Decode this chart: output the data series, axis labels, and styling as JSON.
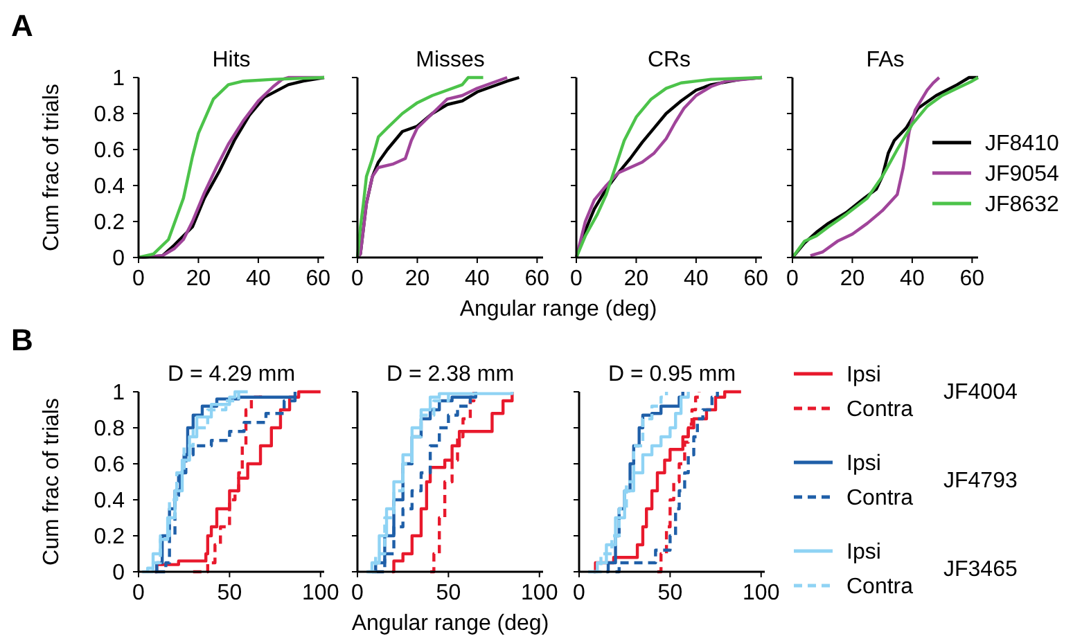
{
  "chart_data": [
    {
      "type": "line",
      "title": "Hits",
      "ylabel": "Cum frac of trials",
      "annotations": [
        "A"
      ],
      "xlim": [
        0,
        62
      ],
      "xticks": [
        0,
        20,
        40,
        60
      ],
      "ylim": [
        0,
        1
      ],
      "yticks": [
        {
          "value": 0,
          "label": "0"
        },
        {
          "value": 0.2,
          "label": "0.2"
        },
        {
          "value": 0.4,
          "label": "0.4"
        },
        {
          "value": 0.6,
          "label": "0.6"
        },
        {
          "value": 0.8,
          "label": "0.8"
        },
        {
          "value": 1,
          "label": "1"
        }
      ],
      "legend": false,
      "series": [
        {
          "color": "#000000",
          "x": [
            0,
            8,
            12,
            18,
            22,
            27,
            32,
            37,
            42,
            50,
            55,
            62
          ],
          "values": [
            0,
            0.01,
            0.07,
            0.17,
            0.33,
            0.48,
            0.65,
            0.79,
            0.89,
            0.96,
            0.98,
            1
          ]
        },
        {
          "color": "#a0449a",
          "x": [
            0,
            8,
            12,
            15,
            18,
            22,
            26,
            30,
            35,
            40,
            45,
            48,
            50,
            62
          ],
          "values": [
            0,
            0.01,
            0.05,
            0.1,
            0.2,
            0.36,
            0.5,
            0.63,
            0.76,
            0.87,
            0.95,
            0.99,
            1,
            1
          ]
        },
        {
          "color": "#4cc34a",
          "x": [
            0,
            5,
            10,
            15,
            18,
            20,
            25,
            30,
            35,
            45,
            62
          ],
          "values": [
            0,
            0.02,
            0.1,
            0.33,
            0.56,
            0.69,
            0.88,
            0.96,
            0.98,
            0.99,
            1
          ]
        }
      ]
    },
    {
      "type": "line",
      "title": "Misses",
      "xlabel": "Angular range (deg)",
      "tick_labels": "x",
      "xlim": [
        0,
        62
      ],
      "xticks": [
        0,
        20,
        40,
        60
      ],
      "ylim": [
        0,
        1
      ],
      "yticks": [
        {
          "value": 0,
          "label": null
        },
        {
          "value": 0.2,
          "label": null
        },
        {
          "value": 0.4,
          "label": null
        },
        {
          "value": 0.6,
          "label": null
        },
        {
          "value": 0.8,
          "label": null
        },
        {
          "value": 1,
          "label": null
        }
      ],
      "legend": false,
      "series": [
        {
          "color": "#000000",
          "x": [
            0,
            1,
            3,
            5,
            7,
            10,
            15,
            20,
            25,
            30,
            35,
            40,
            45,
            50,
            54
          ],
          "values": [
            0,
            0.02,
            0.3,
            0.45,
            0.53,
            0.6,
            0.7,
            0.73,
            0.8,
            0.85,
            0.87,
            0.92,
            0.95,
            0.98,
            1
          ]
        },
        {
          "color": "#a0449a",
          "x": [
            0,
            1,
            3,
            5,
            7,
            12,
            16,
            18,
            20,
            25,
            30,
            35,
            40,
            45,
            50
          ],
          "values": [
            0,
            0.02,
            0.3,
            0.45,
            0.5,
            0.52,
            0.55,
            0.65,
            0.72,
            0.8,
            0.88,
            0.9,
            0.94,
            0.97,
            1
          ]
        },
        {
          "color": "#4cc34a",
          "x": [
            0,
            1,
            2,
            3,
            5,
            7,
            10,
            15,
            20,
            25,
            30,
            35,
            37,
            42
          ],
          "values": [
            0,
            0.17,
            0.3,
            0.45,
            0.55,
            0.67,
            0.72,
            0.8,
            0.86,
            0.9,
            0.93,
            0.96,
            1,
            1
          ]
        }
      ]
    },
    {
      "type": "line",
      "title": "CRs",
      "tick_labels": "x",
      "xlim": [
        0,
        62
      ],
      "xticks": [
        0,
        20,
        40,
        60
      ],
      "ylim": [
        0,
        1
      ],
      "yticks": [
        {
          "value": 0,
          "label": null
        },
        {
          "value": 0.2,
          "label": null
        },
        {
          "value": 0.4,
          "label": null
        },
        {
          "value": 0.6,
          "label": null
        },
        {
          "value": 0.8,
          "label": null
        },
        {
          "value": 1,
          "label": null
        }
      ],
      "legend": false,
      "series": [
        {
          "color": "#000000",
          "x": [
            0,
            3,
            6,
            10,
            14,
            18,
            22,
            26,
            30,
            35,
            40,
            45,
            55,
            62
          ],
          "values": [
            0,
            0.15,
            0.27,
            0.38,
            0.47,
            0.55,
            0.64,
            0.72,
            0.8,
            0.87,
            0.93,
            0.96,
            0.99,
            1
          ]
        },
        {
          "color": "#a0449a",
          "x": [
            0,
            3,
            6,
            10,
            14,
            18,
            22,
            26,
            30,
            33,
            36,
            40,
            45,
            50,
            62
          ],
          "values": [
            0,
            0.2,
            0.32,
            0.4,
            0.47,
            0.5,
            0.53,
            0.58,
            0.66,
            0.75,
            0.83,
            0.9,
            0.95,
            0.98,
            1
          ]
        },
        {
          "color": "#4cc34a",
          "x": [
            0,
            3,
            7,
            10,
            13,
            16,
            20,
            25,
            30,
            35,
            45,
            62
          ],
          "values": [
            0,
            0.12,
            0.24,
            0.35,
            0.5,
            0.65,
            0.78,
            0.88,
            0.94,
            0.97,
            0.99,
            1
          ]
        }
      ]
    },
    {
      "type": "line",
      "title": "FAs",
      "tick_labels": "x",
      "xlim": [
        0,
        62
      ],
      "xticks": [
        0,
        20,
        40,
        60
      ],
      "ylim": [
        0,
        1
      ],
      "yticks": [
        {
          "value": 0,
          "label": null
        },
        {
          "value": 0.2,
          "label": null
        },
        {
          "value": 0.4,
          "label": null
        },
        {
          "value": 0.6,
          "label": null
        },
        {
          "value": 0.8,
          "label": null
        },
        {
          "value": 1,
          "label": null
        }
      ],
      "legend": "right",
      "series": [
        {
          "name": "JF8410",
          "color": "#000000",
          "x": [
            0,
            4,
            8,
            12,
            18,
            24,
            28,
            30,
            32,
            34,
            38,
            42,
            48,
            55,
            59,
            62
          ],
          "values": [
            0,
            0.08,
            0.14,
            0.19,
            0.25,
            0.33,
            0.38,
            0.45,
            0.58,
            0.65,
            0.72,
            0.83,
            0.9,
            0.96,
            1,
            1
          ]
        },
        {
          "name": "JF9054",
          "color": "#a0449a",
          "x": [
            6,
            10,
            15,
            20,
            25,
            30,
            35,
            37,
            39,
            41,
            45,
            47,
            49
          ],
          "values": [
            0.01,
            0.03,
            0.09,
            0.13,
            0.19,
            0.26,
            0.35,
            0.5,
            0.7,
            0.82,
            0.93,
            0.97,
            1
          ]
        },
        {
          "name": "JF8632",
          "color": "#4cc34a",
          "x": [
            0,
            4,
            8,
            12,
            18,
            25,
            30,
            35,
            40,
            45,
            50,
            55,
            60,
            62
          ],
          "values": [
            0,
            0.09,
            0.12,
            0.17,
            0.24,
            0.33,
            0.45,
            0.6,
            0.74,
            0.84,
            0.9,
            0.94,
            0.98,
            1
          ]
        }
      ]
    },
    {
      "type": "step",
      "title": "D = 4.29 mm",
      "ylabel": "Cum frac of trials",
      "annotations": [
        "B"
      ],
      "xlim": [
        0,
        102
      ],
      "xticks": [
        0,
        50,
        100
      ],
      "ylim": [
        0,
        1
      ],
      "yticks": [
        {
          "value": 0,
          "label": "0"
        },
        {
          "value": 0.2,
          "label": "0.2"
        },
        {
          "value": 0.4,
          "label": "0.4"
        },
        {
          "value": 0.6,
          "label": "0.6"
        },
        {
          "value": 0.8,
          "label": "0.8"
        },
        {
          "value": 1,
          "label": "1"
        }
      ],
      "legend": false,
      "series": [
        {
          "color": "#e8192c",
          "line_style": "solid",
          "x": [
            9,
            10,
            20,
            22,
            35,
            37,
            38,
            40,
            43,
            47,
            50,
            55,
            60,
            67,
            73,
            78,
            83,
            88,
            100
          ],
          "values": [
            0,
            0.04,
            0.04,
            0.06,
            0.06,
            0.1,
            0.2,
            0.25,
            0.35,
            0.35,
            0.45,
            0.52,
            0.6,
            0.7,
            0.8,
            0.9,
            0.97,
            1,
            1
          ]
        },
        {
          "color": "#e8192c",
          "line_style": "dashed",
          "x": [
            30,
            38,
            42,
            45,
            50,
            53,
            55,
            57,
            59,
            62,
            67
          ],
          "values": [
            0,
            0.05,
            0.15,
            0.25,
            0.4,
            0.45,
            0.55,
            0.7,
            0.9,
            0.97,
            1
          ]
        },
        {
          "color": "#1f5fa8",
          "line_style": "solid",
          "x": [
            9,
            10,
            13,
            17,
            20,
            23,
            25,
            27,
            30,
            35,
            43,
            55,
            86
          ],
          "values": [
            0,
            0.05,
            0.2,
            0.35,
            0.45,
            0.55,
            0.65,
            0.8,
            0.87,
            0.92,
            0.96,
            0.97,
            1
          ]
        },
        {
          "color": "#1f5fa8",
          "line_style": "dashed",
          "x": [
            10,
            15,
            17,
            20,
            22,
            26,
            30,
            40,
            50,
            58,
            70,
            80,
            86
          ],
          "values": [
            0,
            0.05,
            0.2,
            0.4,
            0.55,
            0.65,
            0.7,
            0.73,
            0.78,
            0.83,
            0.88,
            0.95,
            1
          ]
        },
        {
          "color": "#8fd3f4",
          "line_style": "solid",
          "x": [
            2,
            5,
            8,
            12,
            16,
            20,
            24,
            28,
            32,
            40,
            50,
            53,
            60
          ],
          "values": [
            0,
            0.02,
            0.1,
            0.18,
            0.3,
            0.45,
            0.62,
            0.75,
            0.86,
            0.93,
            0.97,
            1,
            1
          ]
        },
        {
          "color": "#8fd3f4",
          "line_style": "dashed",
          "x": [
            5,
            8,
            12,
            17,
            21,
            25,
            30,
            38,
            48,
            55
          ],
          "values": [
            0,
            0.05,
            0.2,
            0.4,
            0.55,
            0.7,
            0.8,
            0.9,
            0.95,
            1
          ]
        }
      ]
    },
    {
      "type": "step",
      "title": "D = 2.38 mm",
      "xlabel": "Angular range (deg)",
      "tick_labels": "x",
      "xlim": [
        0,
        102
      ],
      "xticks": [
        0,
        50,
        100
      ],
      "ylim": [
        0,
        1
      ],
      "yticks": [
        {
          "value": 0,
          "label": null
        },
        {
          "value": 0.2,
          "label": null
        },
        {
          "value": 0.4,
          "label": null
        },
        {
          "value": 0.6,
          "label": null
        },
        {
          "value": 0.8,
          "label": null
        },
        {
          "value": 1,
          "label": null
        }
      ],
      "legend": false,
      "series": [
        {
          "color": "#e8192c",
          "line_style": "solid",
          "x": [
            19,
            20,
            25,
            30,
            35,
            38,
            40,
            48,
            52,
            56,
            72,
            74,
            80,
            85
          ],
          "values": [
            0,
            0.06,
            0.1,
            0.2,
            0.35,
            0.5,
            0.58,
            0.62,
            0.7,
            0.78,
            0.78,
            0.88,
            0.95,
            1
          ]
        },
        {
          "color": "#e8192c",
          "line_style": "dashed",
          "x": [
            40,
            42,
            45,
            48,
            52,
            55,
            58,
            62,
            64
          ],
          "values": [
            0,
            0.1,
            0.3,
            0.5,
            0.62,
            0.75,
            0.85,
            0.95,
            1
          ]
        },
        {
          "color": "#1f5fa8",
          "line_style": "solid",
          "x": [
            8,
            10,
            15,
            20,
            25,
            30,
            35,
            40,
            45,
            52,
            65
          ],
          "values": [
            0,
            0.05,
            0.2,
            0.4,
            0.6,
            0.75,
            0.85,
            0.9,
            0.95,
            0.97,
            1
          ]
        },
        {
          "color": "#1f5fa8",
          "line_style": "dashed",
          "x": [
            10,
            15,
            20,
            25,
            30,
            35,
            40,
            45,
            50,
            55,
            62,
            65
          ],
          "values": [
            0,
            0.1,
            0.25,
            0.35,
            0.45,
            0.55,
            0.7,
            0.8,
            0.87,
            0.92,
            0.97,
            1
          ]
        },
        {
          "color": "#8fd3f4",
          "line_style": "solid",
          "x": [
            5,
            8,
            12,
            16,
            20,
            25,
            30,
            35,
            40,
            45,
            85
          ],
          "values": [
            0,
            0.05,
            0.2,
            0.35,
            0.5,
            0.65,
            0.8,
            0.9,
            0.97,
            0.99,
            1
          ]
        },
        {
          "color": "#8fd3f4",
          "line_style": "dashed",
          "x": [
            6,
            10,
            15,
            20,
            25,
            30,
            35,
            42,
            50
          ],
          "values": [
            0,
            0.1,
            0.3,
            0.45,
            0.6,
            0.75,
            0.87,
            0.95,
            1
          ]
        }
      ]
    },
    {
      "type": "step",
      "title": "D = 0.95 mm",
      "tick_labels": "x",
      "xlim": [
        0,
        102
      ],
      "xticks": [
        0,
        50,
        100
      ],
      "ylim": [
        0,
        1
      ],
      "yticks": [
        {
          "value": 0,
          "label": null
        },
        {
          "value": 0.2,
          "label": null
        },
        {
          "value": 0.4,
          "label": null
        },
        {
          "value": 0.6,
          "label": null
        },
        {
          "value": 0.8,
          "label": null
        },
        {
          "value": 1,
          "label": null
        }
      ],
      "legend": "right",
      "annotations": [
        "JF4004",
        "JF4793",
        "JF3465"
      ],
      "series": [
        {
          "name": "Ipsi",
          "color": "#e8192c",
          "line_style": "solid",
          "x": [
            8,
            9,
            17,
            19,
            30,
            32,
            35,
            37,
            40,
            43,
            47,
            50,
            55,
            57,
            60,
            63,
            70,
            75,
            80,
            89
          ],
          "values": [
            0,
            0.05,
            0.05,
            0.08,
            0.08,
            0.15,
            0.25,
            0.35,
            0.45,
            0.55,
            0.62,
            0.68,
            0.68,
            0.75,
            0.8,
            0.85,
            0.9,
            0.97,
            1,
            1
          ]
        },
        {
          "name": "Contra",
          "color": "#e8192c",
          "line_style": "dashed",
          "x": [
            43,
            45,
            48,
            50,
            52,
            55,
            58,
            60,
            62,
            64,
            66
          ],
          "values": [
            0,
            0.1,
            0.25,
            0.4,
            0.5,
            0.6,
            0.72,
            0.82,
            0.9,
            0.97,
            1
          ]
        },
        {
          "name": "Ipsi",
          "color": "#1f5fa8",
          "line_style": "solid",
          "x": [
            15,
            16,
            20,
            22,
            25,
            28,
            30,
            33,
            35,
            40,
            45,
            55,
            57
          ],
          "values": [
            0,
            0.05,
            0.2,
            0.35,
            0.45,
            0.6,
            0.7,
            0.8,
            0.87,
            0.88,
            0.92,
            0.97,
            1
          ]
        },
        {
          "name": "Contra",
          "color": "#1f5fa8",
          "line_style": "dashed",
          "x": [
            20,
            22,
            40,
            42,
            50,
            53,
            55,
            58,
            60,
            63,
            65,
            68,
            73,
            76
          ],
          "values": [
            0,
            0.05,
            0.05,
            0.12,
            0.2,
            0.35,
            0.45,
            0.55,
            0.65,
            0.75,
            0.85,
            0.9,
            0.97,
            1
          ]
        },
        {
          "name": "Ipsi",
          "color": "#8fd3f4",
          "line_style": "solid",
          "x": [
            5,
            10,
            15,
            20,
            25,
            30,
            35,
            40,
            45,
            50,
            53,
            56,
            60
          ],
          "values": [
            0,
            0.05,
            0.15,
            0.3,
            0.45,
            0.55,
            0.65,
            0.7,
            0.75,
            0.8,
            0.88,
            0.97,
            1
          ]
        },
        {
          "name": "Contra",
          "color": "#8fd3f4",
          "line_style": "dashed",
          "x": [
            8,
            12,
            18,
            22,
            26,
            30,
            35,
            40,
            45,
            48
          ],
          "values": [
            0,
            0.1,
            0.2,
            0.35,
            0.5,
            0.7,
            0.85,
            0.92,
            0.97,
            1
          ]
        }
      ]
    }
  ]
}
